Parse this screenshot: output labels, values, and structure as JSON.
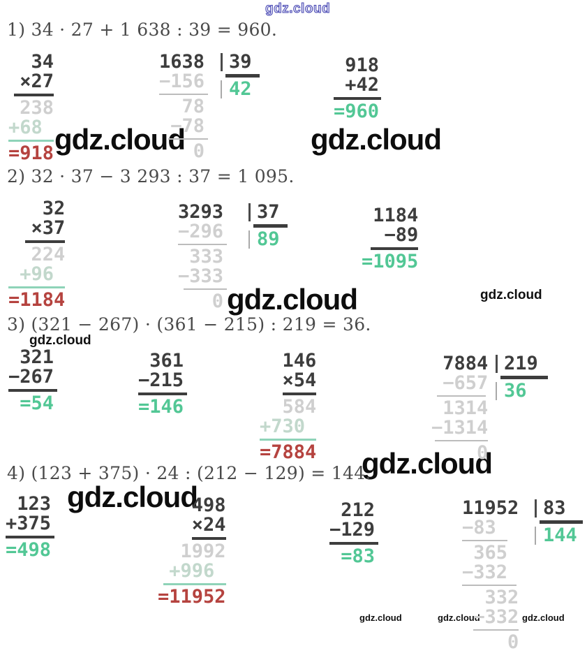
{
  "brand": "gdz.cloud",
  "colors": {
    "accent_green": "#52c795",
    "accent_red": "#b5433f",
    "faint_gray": "#cfcfcf",
    "dark_text": "#3d3d3d",
    "watermark_blue": "#4545b2"
  },
  "problems": {
    "p1": {
      "header": "1) 34 · 27 + 1 638 : 39 = 960.",
      "mult": [
        {
          "t": "  34",
          "c": "dark"
        },
        {
          "t": " ×27",
          "c": "dark"
        },
        {
          "rule": "dark",
          "l": 0.5,
          "w": 3.5
        },
        {
          "t": " 238",
          "c": "faint"
        },
        {
          "t": "+68",
          "c": "faintgreen"
        },
        {
          "rule": "green",
          "l": 0,
          "w": 4
        },
        {
          "t": "=918",
          "c": "red"
        }
      ],
      "div_left": [
        {
          "t": "1638",
          "c": "dark"
        },
        {
          "t": "−156",
          "c": "faint"
        },
        {
          "rule": "thin",
          "l": 0,
          "w": 4.3
        },
        {
          "t": "  78",
          "c": "faint"
        },
        {
          "t": " −78",
          "c": "faint"
        },
        {
          "rule": "thin",
          "l": 0.8,
          "w": 3.5
        },
        {
          "t": "   0",
          "c": "faint"
        }
      ],
      "div_right": [
        {
          "t": "39",
          "c": "dark",
          "bar": "dark"
        },
        {
          "rule": "thick",
          "l": -0.3,
          "w": 3
        },
        {
          "t": "42",
          "c": "green",
          "bar": "gray"
        }
      ],
      "sum": [
        {
          "t": " 918",
          "c": "dark"
        },
        {
          "t": " +42",
          "c": "dark"
        },
        {
          "rule": "dark",
          "l": 0,
          "w": 4.2
        },
        {
          "t": "=960",
          "c": "green"
        }
      ]
    },
    "p2": {
      "header": "2) 32 · 37 − 3 293 : 37 = 1 095.",
      "mult": [
        {
          "t": "   32",
          "c": "dark"
        },
        {
          "t": "  ×37",
          "c": "dark"
        },
        {
          "rule": "dark",
          "l": 1.5,
          "w": 3.5
        },
        {
          "t": "  224",
          "c": "faint"
        },
        {
          "t": " +96",
          "c": "faintgreen"
        },
        {
          "rule": "green",
          "l": 0,
          "w": 5
        },
        {
          "t": "=1184",
          "c": "red"
        }
      ],
      "div_left": [
        {
          "t": "3293",
          "c": "dark"
        },
        {
          "t": "−296",
          "c": "faint"
        },
        {
          "rule": "thin",
          "l": 0,
          "w": 4.3
        },
        {
          "t": " 333",
          "c": "faint"
        },
        {
          "t": "−333",
          "c": "faint"
        },
        {
          "rule": "thin",
          "l": 0.5,
          "w": 3.8
        },
        {
          "t": "   0",
          "c": "faint"
        }
      ],
      "div_right": [
        {
          "t": "37",
          "c": "dark",
          "bar": "dark"
        },
        {
          "rule": "thick",
          "l": -0.3,
          "w": 3
        },
        {
          "t": "89",
          "c": "green",
          "bar": "gray"
        }
      ],
      "sub": [
        {
          "t": " 1184",
          "c": "dark"
        },
        {
          "t": "  −89",
          "c": "dark"
        },
        {
          "rule": "dark",
          "l": 0.8,
          "w": 4.2
        },
        {
          "t": "=1095",
          "c": "green"
        }
      ]
    },
    "p3": {
      "header": "3) (321 − 267) · (361 − 215) : 219 = 36.",
      "sub1": [
        {
          "t": " 321",
          "c": "dark"
        },
        {
          "t": "−267",
          "c": "dark"
        },
        {
          "rule": "dark",
          "l": 0,
          "w": 4.3
        },
        {
          "t": " =54",
          "c": "green"
        }
      ],
      "sub2": [
        {
          "t": " 361",
          "c": "dark"
        },
        {
          "t": "−215",
          "c": "dark"
        },
        {
          "rule": "dark",
          "l": 0,
          "w": 4.3
        },
        {
          "t": "=146",
          "c": "green"
        }
      ],
      "mult": [
        {
          "t": "  146",
          "c": "dark"
        },
        {
          "t": "  ×54",
          "c": "dark"
        },
        {
          "rule": "dark",
          "l": 2,
          "w": 3
        },
        {
          "t": "  584",
          "c": "faint"
        },
        {
          "t": "+730",
          "c": "faintgreen"
        },
        {
          "rule": "green",
          "l": 0,
          "w": 5
        },
        {
          "t": "=7884",
          "c": "red"
        }
      ],
      "div_left": [
        {
          "t": " 7884",
          "c": "dark"
        },
        {
          "t": " −657",
          "c": "faint"
        },
        {
          "rule": "thin",
          "l": 0.5,
          "w": 4.3
        },
        {
          "t": " 1314",
          "c": "faint"
        },
        {
          "t": "−1314",
          "c": "faint"
        },
        {
          "rule": "thin",
          "l": 0.3,
          "w": 4.7
        },
        {
          "t": "    0",
          "c": "faint"
        }
      ],
      "div_right": [
        {
          "t": "219",
          "c": "dark",
          "bar": "dark"
        },
        {
          "rule": "thick",
          "l": -0.3,
          "w": 4.2
        },
        {
          "t": "36",
          "c": "green",
          "bar": "gray"
        }
      ]
    },
    "p4": {
      "header": "4) (123 + 375) · 24 : (212 − 129) = 144.",
      "add": [
        {
          "t": " 123",
          "c": "dark"
        },
        {
          "t": "+375",
          "c": "dark"
        },
        {
          "rule": "dark",
          "l": 0,
          "w": 4.3
        },
        {
          "t": "=498",
          "c": "green"
        }
      ],
      "mult": [
        {
          "t": "   498",
          "c": "dark"
        },
        {
          "t": "   ×24",
          "c": "dark"
        },
        {
          "rule": "dark",
          "l": 3,
          "w": 3
        },
        {
          "t": "  1992",
          "c": "faint"
        },
        {
          "t": " +996",
          "c": "faintgreen"
        },
        {
          "rule": "green",
          "l": 0.5,
          "w": 5.5
        },
        {
          "t": "=11952",
          "c": "red"
        }
      ],
      "sub": [
        {
          "t": " 212",
          "c": "dark"
        },
        {
          "t": "−129",
          "c": "dark"
        },
        {
          "rule": "dark",
          "l": 0,
          "w": 4.3
        },
        {
          "t": " =83",
          "c": "green"
        }
      ],
      "div_left": [
        {
          "t": "11952",
          "c": "dark"
        },
        {
          "t": "−83",
          "c": "faint"
        },
        {
          "rule": "thin",
          "l": 0,
          "w": 4
        },
        {
          "t": " 365",
          "c": "faint"
        },
        {
          "t": "−332",
          "c": "faint"
        },
        {
          "rule": "thin",
          "l": 0,
          "w": 4.8
        },
        {
          "t": "  332",
          "c": "faint"
        },
        {
          "t": " −332",
          "c": "faint"
        },
        {
          "rule": "thin",
          "l": 1,
          "w": 4
        },
        {
          "t": "    0",
          "c": "faint"
        }
      ],
      "div_right": [
        {
          "t": "83",
          "c": "dark",
          "bar": "dark"
        },
        {
          "rule": "thick",
          "l": -0.3,
          "w": 3.8
        },
        {
          "t": "144",
          "c": "green",
          "bar": "gray"
        }
      ]
    }
  }
}
